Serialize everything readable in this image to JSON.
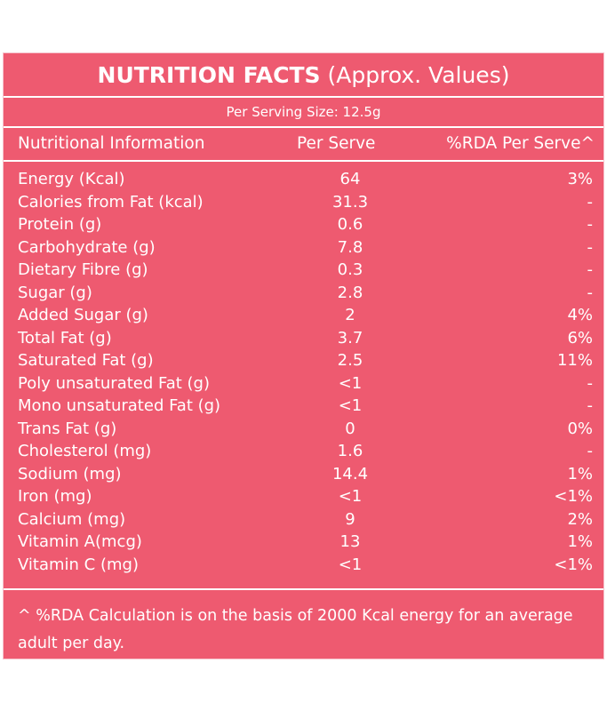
{
  "title": {
    "bold": "NUTRITION FACTS",
    "normal": "(Approx. Values)"
  },
  "serving_size": "Per Serving Size: 12.5g",
  "headers": {
    "info": "Nutritional Information",
    "serve": "Per Serve",
    "rda": "%RDA Per Serve^"
  },
  "rows": [
    {
      "name": "Energy (Kcal)",
      "value": "64",
      "rda": "3%"
    },
    {
      "name": "Calories from Fat (kcal)",
      "value": "31.3",
      "rda": "-"
    },
    {
      "name": "Protein (g)",
      "value": "0.6",
      "rda": "-"
    },
    {
      "name": "Carbohydrate (g)",
      "value": "7.8",
      "rda": "-"
    },
    {
      "name": "Dietary Fibre (g)",
      "value": "0.3",
      "rda": "-"
    },
    {
      "name": "Sugar (g)",
      "value": "2.8",
      "rda": "-"
    },
    {
      "name": "Added Sugar (g)",
      "value": "2",
      "rda": "4%"
    },
    {
      "name": "Total Fat (g)",
      "value": "3.7",
      "rda": "6%"
    },
    {
      "name": "Saturated Fat (g)",
      "value": "2.5",
      "rda": "11%"
    },
    {
      "name": "Poly unsaturated Fat (g)",
      "value": "<1",
      "rda": "-"
    },
    {
      "name": "Mono unsaturated Fat (g)",
      "value": "<1",
      "rda": "-"
    },
    {
      "name": "Trans Fat (g)",
      "value": "0",
      "rda": "0%"
    },
    {
      "name": "Cholesterol (mg)",
      "value": "1.6",
      "rda": "-"
    },
    {
      "name": "Sodium (mg)",
      "value": "14.4",
      "rda": "1%"
    },
    {
      "name": "Iron (mg)",
      "value": "<1",
      "rda": "<1%"
    },
    {
      "name": "Calcium (mg)",
      "value": "9",
      "rda": "2%"
    },
    {
      "name": "Vitamin A(mcg)",
      "value": "13",
      "rda": "1%"
    },
    {
      "name": "Vitamin C (mg)",
      "value": "<1",
      "rda": "<1%"
    }
  ],
  "footnote": "^ %RDA Calculation is on the basis of 2000 Kcal energy for an average adult per day.",
  "colors": {
    "panel": "#ee5a70",
    "text": "#ffffff"
  }
}
